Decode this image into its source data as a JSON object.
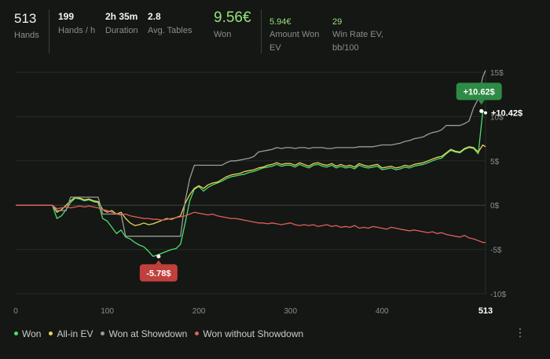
{
  "stats": [
    {
      "value": "513",
      "label": "Hands",
      "style": "big"
    },
    {
      "value": "199",
      "label": "Hands / h",
      "style": "normal"
    },
    {
      "value": "2h 35m",
      "label": "Duration",
      "style": "normal"
    },
    {
      "value": "2.8",
      "label": "Avg. Tables",
      "style": "normal"
    },
    {
      "value": "9.56€",
      "label": "Won",
      "style": "greenbig"
    },
    {
      "value": "5.94€",
      "label": "Amount Won EV",
      "style": "green"
    },
    {
      "value": "29",
      "label": "Win Rate EV, bb/100",
      "style": "green"
    }
  ],
  "menu_icon": "more-vertical-icon",
  "chart_data": {
    "type": "line",
    "title": "",
    "xlabel": "",
    "ylabel": "",
    "xlim": [
      0,
      513
    ],
    "ylim": [
      -10,
      15
    ],
    "x_ticks": [
      0,
      100,
      200,
      300,
      400
    ],
    "x_end_label": "513",
    "y_ticks": [
      15,
      10,
      5,
      0,
      -5,
      -10
    ],
    "y_tick_labels": [
      "15$",
      "10$",
      "5$",
      "0$",
      "-5$",
      "-10$"
    ],
    "grid": true,
    "legend_position": "bottom-left",
    "series": [
      {
        "name": "Won",
        "color": "#4fdc6f",
        "x": [
          0,
          40,
          45,
          50,
          55,
          60,
          65,
          70,
          75,
          80,
          85,
          90,
          95,
          100,
          105,
          110,
          115,
          120,
          125,
          130,
          135,
          140,
          145,
          150,
          155,
          160,
          165,
          170,
          175,
          180,
          185,
          190,
          195,
          200,
          205,
          210,
          215,
          220,
          225,
          230,
          235,
          240,
          245,
          250,
          255,
          260,
          265,
          270,
          275,
          280,
          285,
          290,
          295,
          300,
          305,
          310,
          315,
          320,
          325,
          330,
          335,
          340,
          345,
          350,
          355,
          360,
          365,
          370,
          375,
          380,
          385,
          390,
          395,
          400,
          405,
          410,
          415,
          420,
          425,
          430,
          435,
          440,
          445,
          450,
          455,
          460,
          465,
          470,
          475,
          480,
          485,
          490,
          495,
          500,
          505,
          510,
          513
        ],
        "y": [
          0,
          0,
          -1.5,
          -1.2,
          -0.5,
          0.3,
          0.8,
          0.7,
          0.5,
          0.6,
          0.4,
          0.3,
          -1.5,
          -1.8,
          -2.5,
          -3.2,
          -2.8,
          -3.6,
          -3.8,
          -4.2,
          -4.5,
          -4.7,
          -5.2,
          -5.78,
          -5.6,
          -5.4,
          -5.2,
          -5.0,
          -4.9,
          -4.4,
          -2.0,
          0.5,
          1.8,
          2.1,
          1.6,
          2.0,
          2.3,
          2.5,
          2.7,
          3.0,
          3.2,
          3.3,
          3.4,
          3.5,
          3.7,
          3.8,
          4.0,
          4.2,
          4.3,
          4.4,
          4.6,
          4.4,
          4.5,
          4.5,
          4.3,
          4.6,
          4.4,
          4.2,
          4.5,
          4.6,
          4.4,
          4.3,
          4.5,
          4.2,
          4.4,
          4.2,
          4.3,
          4.1,
          4.5,
          4.3,
          4.2,
          4.3,
          4.4,
          4.0,
          4.1,
          4.2,
          4.0,
          4.1,
          4.3,
          4.2,
          4.4,
          4.5,
          4.6,
          4.8,
          5.0,
          5.2,
          5.3,
          5.8,
          6.2,
          6.0,
          5.9,
          6.3,
          6.5,
          6.4,
          5.8,
          10.62,
          10.42
        ]
      },
      {
        "name": "All-in EV",
        "color": "#e8d45a",
        "x": [
          0,
          40,
          45,
          50,
          55,
          60,
          65,
          70,
          75,
          80,
          85,
          90,
          95,
          100,
          105,
          110,
          115,
          120,
          125,
          130,
          135,
          140,
          145,
          150,
          155,
          160,
          165,
          170,
          175,
          180,
          185,
          190,
          195,
          200,
          205,
          210,
          215,
          220,
          225,
          230,
          235,
          240,
          245,
          250,
          255,
          260,
          265,
          270,
          275,
          280,
          285,
          290,
          295,
          300,
          305,
          310,
          315,
          320,
          325,
          330,
          335,
          340,
          345,
          350,
          355,
          360,
          365,
          370,
          375,
          380,
          385,
          390,
          395,
          400,
          405,
          410,
          415,
          420,
          425,
          430,
          435,
          440,
          445,
          450,
          455,
          460,
          465,
          470,
          475,
          480,
          485,
          490,
          495,
          500,
          505,
          510,
          513
        ],
        "y": [
          0,
          0,
          -0.8,
          -0.5,
          0,
          0.5,
          0.9,
          0.8,
          0.6,
          0.7,
          0.5,
          0.4,
          -0.5,
          -0.8,
          -0.6,
          -1.0,
          -0.8,
          -1.5,
          -2.0,
          -2.3,
          -2.2,
          -2.0,
          -2.2,
          -2.1,
          -1.9,
          -1.7,
          -1.5,
          -1.6,
          -1.4,
          -1.2,
          0.2,
          1.2,
          1.9,
          2.2,
          1.9,
          2.3,
          2.5,
          2.6,
          2.9,
          3.2,
          3.4,
          3.5,
          3.6,
          3.8,
          3.9,
          4.0,
          4.2,
          4.3,
          4.5,
          4.6,
          4.8,
          4.6,
          4.7,
          4.7,
          4.5,
          4.8,
          4.6,
          4.4,
          4.7,
          4.8,
          4.6,
          4.5,
          4.7,
          4.4,
          4.6,
          4.4,
          4.5,
          4.3,
          4.7,
          4.5,
          4.4,
          4.5,
          4.6,
          4.2,
          4.3,
          4.4,
          4.2,
          4.3,
          4.5,
          4.4,
          4.6,
          4.7,
          4.8,
          5.0,
          5.2,
          5.4,
          5.5,
          5.9,
          6.3,
          6.1,
          6.0,
          6.4,
          6.6,
          6.5,
          6.0,
          6.8,
          6.6
        ]
      },
      {
        "name": "Won at Showdown",
        "color": "#9a9c9a",
        "x": [
          0,
          40,
          45,
          50,
          55,
          60,
          65,
          70,
          75,
          80,
          85,
          90,
          95,
          100,
          105,
          110,
          115,
          120,
          125,
          130,
          135,
          140,
          145,
          150,
          155,
          160,
          165,
          170,
          175,
          180,
          185,
          190,
          195,
          200,
          205,
          210,
          215,
          220,
          225,
          230,
          235,
          240,
          245,
          250,
          255,
          260,
          265,
          270,
          275,
          280,
          285,
          290,
          295,
          300,
          305,
          310,
          315,
          320,
          325,
          330,
          335,
          340,
          345,
          350,
          355,
          360,
          365,
          370,
          375,
          380,
          385,
          390,
          395,
          400,
          405,
          410,
          415,
          420,
          425,
          430,
          435,
          440,
          445,
          450,
          455,
          460,
          465,
          470,
          475,
          480,
          485,
          490,
          495,
          500,
          505,
          510,
          513
        ],
        "y": [
          0,
          0,
          -0.6,
          -0.6,
          -0.6,
          0.9,
          0.9,
          0.9,
          0.9,
          0.9,
          0.9,
          0.9,
          -1.0,
          -1.0,
          -1.0,
          -1.0,
          -1.0,
          -3.5,
          -3.5,
          -3.5,
          -3.5,
          -3.5,
          -3.5,
          -3.5,
          -3.5,
          -3.5,
          -3.5,
          -3.5,
          -3.5,
          -3.5,
          0.5,
          3.0,
          4.5,
          4.5,
          4.5,
          4.5,
          4.5,
          4.5,
          4.5,
          4.8,
          5.0,
          5.0,
          5.1,
          5.2,
          5.3,
          5.5,
          6.0,
          6.1,
          6.2,
          6.3,
          6.5,
          6.4,
          6.5,
          6.5,
          6.4,
          6.5,
          6.5,
          6.4,
          6.5,
          6.5,
          6.5,
          6.4,
          6.4,
          6.5,
          6.5,
          6.5,
          6.5,
          6.5,
          6.6,
          6.6,
          6.6,
          6.6,
          6.7,
          6.8,
          6.8,
          6.8,
          6.9,
          7.0,
          7.2,
          7.3,
          7.5,
          7.6,
          7.7,
          8.0,
          8.2,
          8.3,
          8.5,
          9.0,
          9.0,
          9.0,
          9.0,
          9.2,
          9.5,
          11.0,
          12.0,
          14.5,
          15.2
        ]
      },
      {
        "name": "Won without Showdown",
        "color": "#e0605a",
        "x": [
          0,
          40,
          45,
          50,
          55,
          60,
          65,
          70,
          75,
          80,
          85,
          90,
          95,
          100,
          105,
          110,
          115,
          120,
          125,
          130,
          135,
          140,
          145,
          150,
          155,
          160,
          165,
          170,
          175,
          180,
          185,
          190,
          195,
          200,
          205,
          210,
          215,
          220,
          225,
          230,
          235,
          240,
          245,
          250,
          255,
          260,
          265,
          270,
          275,
          280,
          285,
          290,
          295,
          300,
          305,
          310,
          315,
          320,
          325,
          330,
          335,
          340,
          345,
          350,
          355,
          360,
          365,
          370,
          375,
          380,
          385,
          390,
          395,
          400,
          405,
          410,
          415,
          420,
          425,
          430,
          435,
          440,
          445,
          450,
          455,
          460,
          465,
          470,
          475,
          480,
          485,
          490,
          495,
          500,
          505,
          510,
          513
        ],
        "y": [
          0,
          0,
          -0.4,
          -0.3,
          -0.2,
          -0.3,
          -0.2,
          -0.1,
          -0.2,
          -0.1,
          -0.2,
          -0.3,
          -0.5,
          -0.6,
          -0.8,
          -1.0,
          -1.1,
          -1.0,
          -1.2,
          -1.3,
          -1.4,
          -1.5,
          -1.5,
          -1.6,
          -1.6,
          -1.7,
          -1.6,
          -1.5,
          -1.4,
          -1.3,
          -1.2,
          -1.0,
          -0.8,
          -0.9,
          -1.0,
          -1.1,
          -1.0,
          -1.2,
          -1.3,
          -1.4,
          -1.5,
          -1.5,
          -1.6,
          -1.7,
          -1.8,
          -1.9,
          -2.0,
          -2.0,
          -2.1,
          -2.0,
          -2.1,
          -2.2,
          -2.1,
          -2.0,
          -2.2,
          -2.3,
          -2.2,
          -2.3,
          -2.2,
          -2.4,
          -2.3,
          -2.2,
          -2.4,
          -2.3,
          -2.5,
          -2.4,
          -2.5,
          -2.3,
          -2.6,
          -2.5,
          -2.6,
          -2.4,
          -2.5,
          -2.6,
          -2.7,
          -2.5,
          -2.6,
          -2.7,
          -2.8,
          -2.9,
          -2.8,
          -2.9,
          -3.0,
          -3.1,
          -3.0,
          -3.2,
          -3.1,
          -3.3,
          -3.4,
          -3.5,
          -3.6,
          -3.4,
          -3.7,
          -3.8,
          -4.0,
          -4.2,
          -4.2
        ]
      }
    ],
    "annotations": [
      {
        "text": "+10.62$",
        "x": 505,
        "y": 10.62,
        "color": "#2e8b45"
      },
      {
        "text": "+10.42$",
        "x": 513,
        "y": 10.42,
        "color": ""
      },
      {
        "text": "-5.78$",
        "x": 150,
        "y": -5.78,
        "color": "#c0403c"
      }
    ]
  }
}
